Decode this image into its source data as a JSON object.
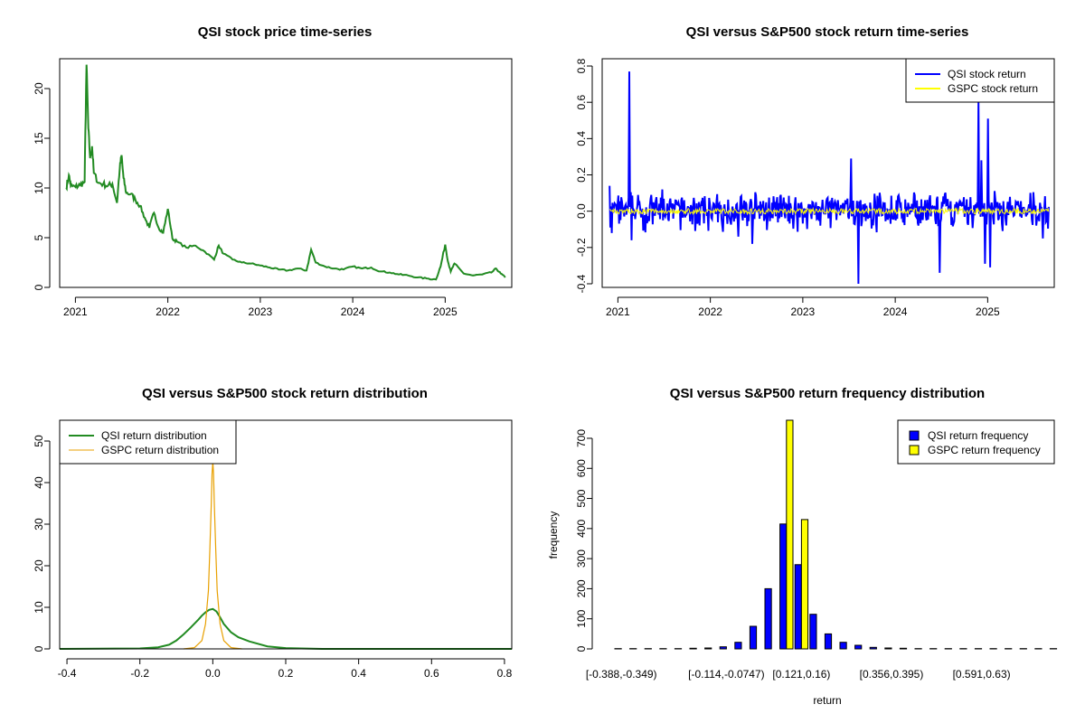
{
  "chart_data": [
    {
      "type": "line",
      "title": "QSI stock price time-series",
      "xlabel": "",
      "ylabel": "",
      "xlim": [
        2020.83,
        2025.72
      ],
      "ylim": [
        0,
        23
      ],
      "xticks": [
        2021,
        2022,
        2023,
        2024,
        2025
      ],
      "xtick_labels": [
        "2021",
        "2022",
        "2023",
        "2024",
        "2025"
      ],
      "yticks": [
        0,
        5,
        10,
        15,
        20
      ],
      "series": [
        {
          "color": "#228b22",
          "x": [
            2020.9,
            2020.93,
            2020.95,
            2021.0,
            2021.05,
            2021.1,
            2021.12,
            2021.14,
            2021.16,
            2021.18,
            2021.2,
            2021.25,
            2021.3,
            2021.35,
            2021.4,
            2021.45,
            2021.48,
            2021.5,
            2021.52,
            2021.55,
            2021.6,
            2021.65,
            2021.7,
            2021.75,
            2021.8,
            2021.85,
            2021.9,
            2021.95,
            2022.0,
            2022.05,
            2022.1,
            2022.2,
            2022.3,
            2022.4,
            2022.5,
            2022.55,
            2022.6,
            2022.7,
            2022.8,
            2022.9,
            2023.0,
            2023.1,
            2023.2,
            2023.3,
            2023.4,
            2023.5,
            2023.55,
            2023.6,
            2023.7,
            2023.8,
            2023.9,
            2024.0,
            2024.1,
            2024.2,
            2024.3,
            2024.4,
            2024.5,
            2024.6,
            2024.7,
            2024.8,
            2024.9,
            2024.95,
            2025.0,
            2025.03,
            2025.06,
            2025.1,
            2025.2,
            2025.3,
            2025.4,
            2025.5,
            2025.55,
            2025.6,
            2025.65
          ],
          "values": [
            10.0,
            11.3,
            10.2,
            10.1,
            10.3,
            10.6,
            22.4,
            16.0,
            13.0,
            14.2,
            11.5,
            10.5,
            10.4,
            10.2,
            10.4,
            8.5,
            12.0,
            13.3,
            11.0,
            9.5,
            9.4,
            8.8,
            8.2,
            7.0,
            6.0,
            7.5,
            6.0,
            5.5,
            7.9,
            4.9,
            4.6,
            4.0,
            4.2,
            3.6,
            2.8,
            4.2,
            3.4,
            2.8,
            2.5,
            2.4,
            2.2,
            2.0,
            1.8,
            1.7,
            1.9,
            1.7,
            3.8,
            2.5,
            2.1,
            1.9,
            1.8,
            2.1,
            1.9,
            2.0,
            1.6,
            1.5,
            1.3,
            1.2,
            1.0,
            0.9,
            0.8,
            2.1,
            4.3,
            2.6,
            1.6,
            2.4,
            1.4,
            1.2,
            1.3,
            1.5,
            1.9,
            1.4,
            1.0
          ]
        }
      ]
    },
    {
      "type": "line",
      "title": "QSI versus S&P500 stock return time-series",
      "xlabel": "",
      "ylabel": "",
      "xlim": [
        2020.83,
        2025.72
      ],
      "ylim": [
        -0.42,
        0.84
      ],
      "xticks": [
        2021,
        2022,
        2023,
        2024,
        2025
      ],
      "xtick_labels": [
        "2021",
        "2022",
        "2023",
        "2024",
        "2025"
      ],
      "yticks": [
        -0.4,
        -0.2,
        0.0,
        0.2,
        0.4,
        0.6,
        0.8
      ],
      "ytick_labels": [
        "-0.4",
        "-0.2",
        "0.0",
        "0.2",
        "0.4",
        "0.6",
        "0.8"
      ],
      "legend_position": "top-right",
      "series": [
        {
          "name": "QSI stock return",
          "color": "#0000ff",
          "spikes": [
            {
              "x": 2020.91,
              "y": 0.14
            },
            {
              "x": 2020.93,
              "y": -0.12
            },
            {
              "x": 2021.12,
              "y": 0.77
            },
            {
              "x": 2021.15,
              "y": -0.16
            },
            {
              "x": 2021.48,
              "y": 0.12
            },
            {
              "x": 2022.3,
              "y": -0.14
            },
            {
              "x": 2022.45,
              "y": -0.18
            },
            {
              "x": 2023.52,
              "y": 0.29
            },
            {
              "x": 2023.6,
              "y": -0.4
            },
            {
              "x": 2024.48,
              "y": -0.34
            },
            {
              "x": 2024.9,
              "y": 0.61
            },
            {
              "x": 2024.93,
              "y": 0.28
            },
            {
              "x": 2024.97,
              "y": -0.29
            },
            {
              "x": 2025.0,
              "y": 0.51
            },
            {
              "x": 2025.03,
              "y": -0.31
            },
            {
              "x": 2025.6,
              "y": -0.15
            }
          ],
          "noise_amplitude": 0.08
        },
        {
          "name": "GSPC stock return",
          "color": "#ffff00",
          "noise_amplitude": 0.015
        }
      ]
    },
    {
      "type": "line",
      "title": "QSI versus S&P500 stock return distribution",
      "xlabel": "",
      "ylabel": "",
      "xlim": [
        -0.42,
        0.82
      ],
      "ylim": [
        0,
        55
      ],
      "xticks": [
        -0.4,
        -0.2,
        0.0,
        0.2,
        0.4,
        0.6,
        0.8
      ],
      "xtick_labels": [
        "-0.4",
        "-0.2",
        "0.0",
        "0.2",
        "0.4",
        "0.6",
        "0.8"
      ],
      "yticks": [
        0,
        10,
        20,
        30,
        40,
        50
      ],
      "legend_position": "top-left",
      "series": [
        {
          "name": "QSI return distribution",
          "color": "#228b22",
          "x": [
            -0.42,
            -0.2,
            -0.15,
            -0.12,
            -0.1,
            -0.08,
            -0.06,
            -0.04,
            -0.03,
            -0.02,
            -0.01,
            0.0,
            0.01,
            0.02,
            0.03,
            0.05,
            0.07,
            0.1,
            0.15,
            0.2,
            0.3,
            0.82
          ],
          "values": [
            0.0,
            0.1,
            0.4,
            1.0,
            2.0,
            3.5,
            5.2,
            7.0,
            8.0,
            8.8,
            9.4,
            9.6,
            9.0,
            7.6,
            6.0,
            4.0,
            2.8,
            1.8,
            0.6,
            0.2,
            0.0,
            0.0
          ]
        },
        {
          "name": "GSPC return distribution",
          "color": "#e8a000",
          "x": [
            -0.08,
            -0.05,
            -0.03,
            -0.02,
            -0.012,
            -0.008,
            -0.004,
            -0.002,
            0.0,
            0.002,
            0.004,
            0.008,
            0.012,
            0.02,
            0.03,
            0.05,
            0.08
          ],
          "values": [
            0.0,
            0.3,
            2.0,
            6.0,
            14.0,
            24.0,
            35.0,
            42.0,
            45.0,
            42.0,
            35.0,
            24.0,
            14.0,
            6.0,
            2.0,
            0.3,
            0.0
          ]
        }
      ]
    },
    {
      "type": "bar",
      "title": "QSI versus S&P500 return frequency distribution",
      "xlabel": "return",
      "ylabel": "frequency",
      "ylim": [
        0,
        760
      ],
      "yticks": [
        0,
        100,
        200,
        300,
        400,
        500,
        600,
        700
      ],
      "xtick_labels": [
        "[-0.388,-0.349)",
        "[-0.114,-0.0747)",
        "[0.121,0.16)",
        "[0.356,0.395)",
        "[0.591,0.63)"
      ],
      "xtick_bins": [
        0,
        7,
        12,
        18,
        24
      ],
      "legend_position": "top-right",
      "bin_count": 30,
      "series": [
        {
          "name": "QSI return frequency",
          "color": "#0000ff",
          "values": [
            1,
            1,
            1,
            1,
            1,
            2,
            3,
            7,
            22,
            75,
            200,
            415,
            280,
            115,
            50,
            22,
            12,
            5,
            3,
            2,
            1,
            1,
            1,
            1,
            1,
            1,
            1,
            1,
            1,
            1
          ]
        },
        {
          "name": "GSPC return frequency",
          "color": "#ffff00",
          "values": [
            0,
            0,
            0,
            0,
            0,
            0,
            0,
            0,
            0,
            0,
            0,
            760,
            430,
            0,
            0,
            0,
            0,
            0,
            0,
            0,
            0,
            0,
            0,
            0,
            0,
            0,
            0,
            0,
            0,
            0
          ]
        }
      ]
    }
  ]
}
